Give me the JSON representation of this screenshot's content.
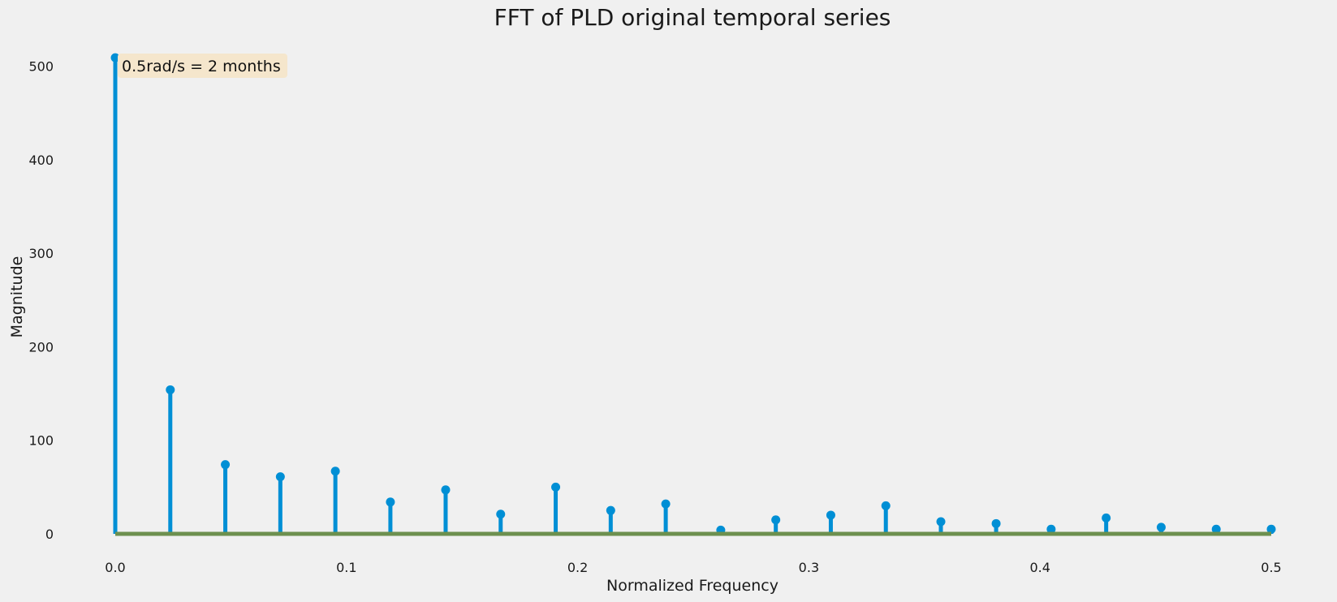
{
  "chart_data": {
    "type": "stem",
    "title": "FFT of PLD original temporal series",
    "xlabel": "Normalized Frequency",
    "ylabel": "Magnitude",
    "xlim": [
      0.0,
      0.5
    ],
    "ylim": [
      0,
      510
    ],
    "xticks": [
      "0.0",
      "0.1",
      "0.2",
      "0.3",
      "0.4",
      "0.5"
    ],
    "yticks": [
      "0",
      "100",
      "200",
      "300",
      "400",
      "500"
    ],
    "grid": false,
    "annotation": "0.5rad/s = 2 months",
    "colors": {
      "stem": "#008fd5",
      "baseline": "#6d904f",
      "annotation_bg": "#f5e6cc",
      "background": "#f0f0f0"
    },
    "x": [
      0.0,
      0.0238,
      0.0476,
      0.0714,
      0.0952,
      0.119,
      0.1429,
      0.1667,
      0.1905,
      0.2143,
      0.2381,
      0.2619,
      0.2857,
      0.3095,
      0.3333,
      0.3571,
      0.381,
      0.4048,
      0.4286,
      0.4524,
      0.4762,
      0.5
    ],
    "values": [
      509,
      154,
      74,
      61,
      67,
      34,
      47,
      21,
      50,
      25,
      32,
      4,
      15,
      20,
      30,
      13,
      11,
      5,
      17,
      7,
      5,
      5
    ]
  }
}
